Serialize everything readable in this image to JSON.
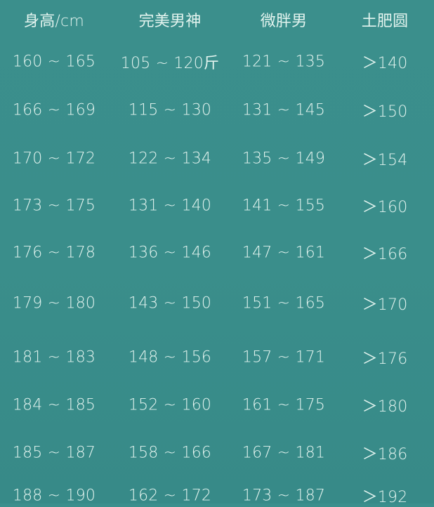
{
  "colors": {
    "background": "#3b8f8d",
    "text": "#e3f4ef"
  },
  "chart_data": {
    "type": "table",
    "columns": [
      "身高/cm",
      "完美男神",
      "微胖男",
      "土肥圆"
    ],
    "rows": [
      [
        "160 ~ 165",
        "105 ~ 120斤",
        "121 ~ 135",
        "＞140"
      ],
      [
        "166 ~ 169",
        "115 ~ 130",
        "131 ~ 145",
        "＞150"
      ],
      [
        "170 ~ 172",
        "122 ~ 134",
        "135 ~ 149",
        "＞154"
      ],
      [
        "173 ~ 175",
        "131 ~ 140",
        "141 ~ 155",
        "＞160"
      ],
      [
        "176 ~ 178",
        "136 ~ 146",
        "147 ~ 161",
        "＞166"
      ],
      [
        "179 ~ 180",
        "143 ~ 150",
        "151 ~ 165",
        "＞170"
      ],
      [
        "181 ~ 183",
        "148 ~ 156",
        "157 ~ 171",
        "＞176"
      ],
      [
        "184 ~ 185",
        "152 ~ 160",
        "161 ~ 175",
        "＞180"
      ],
      [
        "185 ~ 187",
        "158 ~ 166",
        "167 ~ 181",
        "＞186"
      ],
      [
        "188 ~ 190",
        "162 ~ 172",
        "173 ~ 187",
        "＞192"
      ]
    ]
  }
}
